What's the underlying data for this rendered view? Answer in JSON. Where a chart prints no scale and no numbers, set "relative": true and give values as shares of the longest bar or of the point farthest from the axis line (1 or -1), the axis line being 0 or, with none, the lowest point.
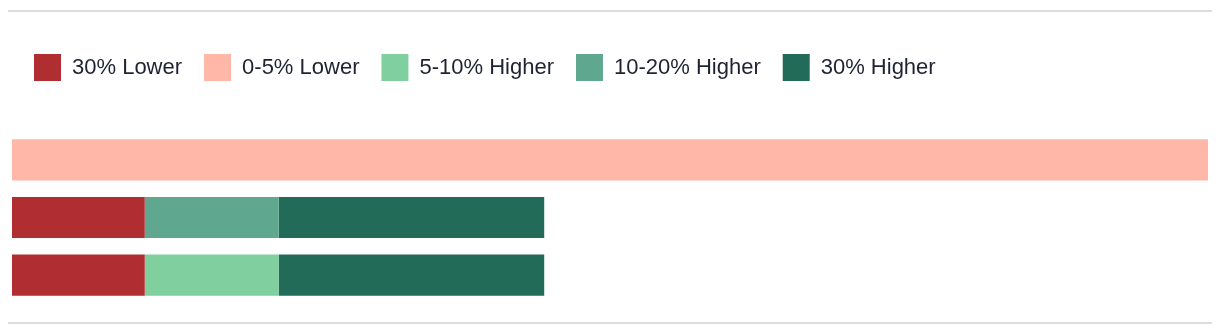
{
  "chart_data": {
    "type": "bar",
    "orientation": "horizontal",
    "stacked": true,
    "relative": true,
    "legend": "top left",
    "tick_labels": false,
    "categories": [
      null,
      null,
      null
    ],
    "series": [
      {
        "name": "30% Lower",
        "color": "#b02e31",
        "values": [
          null,
          0.111,
          0.111
        ]
      },
      {
        "name": "0-5% Lower",
        "color": "#ffb8a8",
        "values": [
          1,
          null,
          null
        ]
      },
      {
        "name": "5-10% Higher",
        "color": "#80cf9f",
        "values": [
          null,
          null,
          0.112
        ]
      },
      {
        "name": "10-20% Higher",
        "color": "#5fa78f",
        "values": [
          null,
          0.112,
          null
        ]
      },
      {
        "name": "30% Higher",
        "color": "#226b58",
        "values": [
          null,
          0.222,
          0.222
        ]
      }
    ]
  }
}
